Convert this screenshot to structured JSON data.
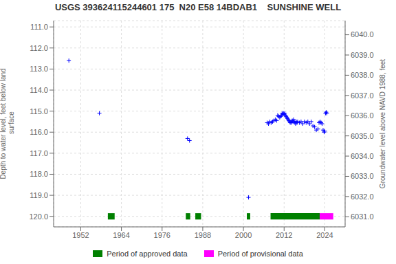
{
  "chart_data": {
    "type": "scatter",
    "title": "USGS 393624115244601 175  N20 E58 14BDAB1    SUNSHINE WELL",
    "ylabel": "Depth to water level, feet below land\n surface",
    "y2label": "Groundwater level above NAVD 1988, feet",
    "xlim": [
      1944,
      2030
    ],
    "xticks": [
      1952,
      1964,
      1976,
      1988,
      2000,
      2012,
      2024
    ],
    "ylim": [
      120.5,
      110.7
    ],
    "yticks": [
      {
        "value": 111.0,
        "label": "111.0"
      },
      {
        "value": 112.0,
        "label": "112.0"
      },
      {
        "value": 113.0,
        "label": "113.0"
      },
      {
        "value": 114.0,
        "label": "114.0"
      },
      {
        "value": 115.0,
        "label": "115.0"
      },
      {
        "value": 116.0,
        "label": "116.0"
      },
      {
        "value": 117.0,
        "label": "117.0"
      },
      {
        "value": 118.0,
        "label": "118.0"
      },
      {
        "value": 119.0,
        "label": "119.0"
      },
      {
        "value": 120.0,
        "label": "120.0"
      }
    ],
    "y2lim": [
      6030.5,
      6040.7
    ],
    "y2ticks": [
      {
        "value": 6031.0,
        "label": "6031.0"
      },
      {
        "value": 6032.0,
        "label": "6032.0"
      },
      {
        "value": 6033.0,
        "label": "6033.0"
      },
      {
        "value": 6034.0,
        "label": "6034.0"
      },
      {
        "value": 6035.0,
        "label": "6035.0"
      },
      {
        "value": 6036.0,
        "label": "6036.0"
      },
      {
        "value": 6037.0,
        "label": "6037.0"
      },
      {
        "value": 6038.0,
        "label": "6038.0"
      },
      {
        "value": 6039.0,
        "label": "6039.0"
      },
      {
        "value": 6040.0,
        "label": "6040.0"
      }
    ],
    "grid": true,
    "legend": "bottom",
    "series": [
      {
        "type": "scatter",
        "color": "#0000FF",
        "marker": "+",
        "x": [
          1948.5,
          1957.5,
          1983.5,
          1984.1,
          2001.5,
          2007.0,
          2007.4,
          2007.8,
          2008.2,
          2008.6,
          2009.0,
          2009.4,
          2009.8,
          2010.1,
          2010.4,
          2010.7,
          2011.0,
          2011.2,
          2011.4,
          2011.6,
          2011.8,
          2012.0,
          2012.2,
          2012.4,
          2012.6,
          2012.8,
          2013.0,
          2013.2,
          2013.4,
          2013.6,
          2013.8,
          2014.0,
          2014.2,
          2014.4,
          2014.6,
          2014.8,
          2015.0,
          2015.2,
          2015.4,
          2015.6,
          2015.8,
          2016.0,
          2016.5,
          2017.0,
          2017.5,
          2018.0,
          2018.5,
          2019.0,
          2019.5,
          2020.0,
          2020.5,
          2021.0,
          2021.5,
          2022.0,
          2022.3,
          2022.6,
          2022.9,
          2023.2,
          2023.5,
          2023.8,
          2024.0,
          2024.2,
          2024.4,
          2024.6
        ],
        "values": [
          112.6,
          115.1,
          116.3,
          116.4,
          119.1,
          115.55,
          115.6,
          115.5,
          115.55,
          115.5,
          115.45,
          115.4,
          115.45,
          115.2,
          115.25,
          115.3,
          115.25,
          115.2,
          115.1,
          115.15,
          115.1,
          115.15,
          115.1,
          115.2,
          115.25,
          115.3,
          115.35,
          115.4,
          115.45,
          115.5,
          115.55,
          115.5,
          115.55,
          115.45,
          115.5,
          115.4,
          115.5,
          115.55,
          115.6,
          115.5,
          115.55,
          115.5,
          115.55,
          115.5,
          115.6,
          115.5,
          115.55,
          115.5,
          115.6,
          115.5,
          115.7,
          115.75,
          115.9,
          115.85,
          115.55,
          115.5,
          115.55,
          115.6,
          115.9,
          116.0,
          115.95,
          115.1,
          115.05,
          115.1
        ]
      }
    ],
    "periods": [
      {
        "name": "Period of approved data",
        "color": "#008000",
        "ranges": [
          [
            1960,
            1962
          ],
          [
            1983,
            1984.3
          ],
          [
            1985.8,
            1987.5
          ],
          [
            2001,
            2002
          ],
          [
            2008,
            2022.5
          ]
        ]
      },
      {
        "name": "Period of provisional data",
        "color": "#FF00FF",
        "ranges": [
          [
            2022.5,
            2026.5
          ]
        ]
      }
    ],
    "bar_y": 120.0,
    "bar_thickness": 0.15
  }
}
